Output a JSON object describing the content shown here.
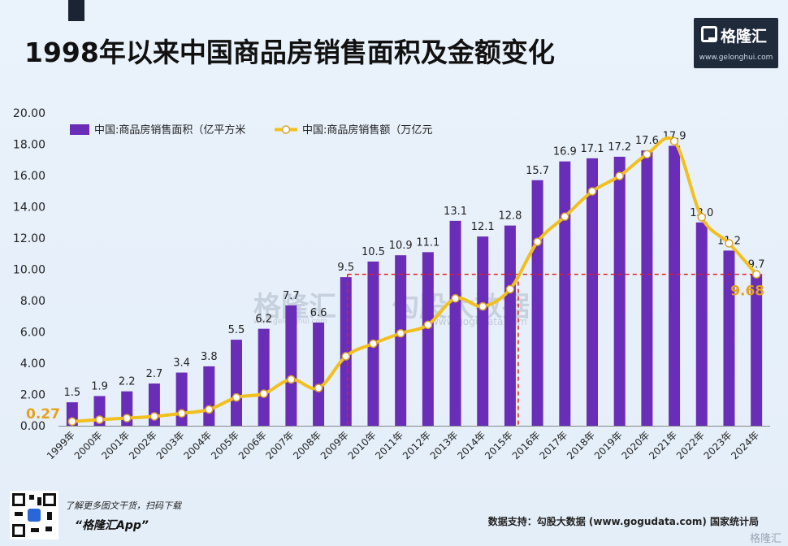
{
  "title": "1998年以来中国商品房销售面积及金额变化",
  "logo": {
    "name": "格隆汇",
    "url": "www.gelonghui.com"
  },
  "watermarks": {
    "w1": "格隆汇",
    "w1_url": "www.gelonghui.com",
    "w2": "勾股大数据",
    "w2_url": "www.gogudata.com"
  },
  "footer": {
    "line1": "了解更多图文干货，扫码下载",
    "line2": "“格隆汇App”",
    "source": "数据支持：勾股大数据  (www.gogudata.com) 国家统计局",
    "corner_logo": "格隆汇"
  },
  "chart_data": {
    "type": "bar",
    "categories": [
      "1999年",
      "2000年",
      "2001年",
      "2002年",
      "2003年",
      "2004年",
      "2005年",
      "2006年",
      "2007年",
      "2008年",
      "2009年",
      "2010年",
      "2011年",
      "2012年",
      "2013年",
      "2014年",
      "2015年",
      "2016年",
      "2017年",
      "2018年",
      "2019年",
      "2020年",
      "2021年",
      "2022年",
      "2023年",
      "2024年"
    ],
    "series": [
      {
        "name": "中国:商品房销售面积（亿平方米",
        "type": "bar",
        "color": "#6a2db8",
        "values": [
          1.5,
          1.9,
          2.2,
          2.7,
          3.4,
          3.8,
          5.5,
          6.2,
          7.7,
          6.6,
          9.5,
          10.5,
          10.9,
          11.1,
          13.1,
          12.1,
          12.8,
          15.7,
          16.9,
          17.1,
          17.2,
          17.6,
          17.9,
          13.0,
          11.2,
          9.7
        ],
        "labels": [
          "1.5",
          "1.9",
          "2.2",
          "2.7",
          "3.4",
          "3.8",
          "5.5",
          "6.2",
          "7.7",
          "6.6",
          "9.5",
          "10.5",
          "10.9",
          "11.1",
          "13.1",
          "12.1",
          "12.8",
          "15.7",
          "16.9",
          "17.1",
          "17.2",
          "17.6",
          "17.9",
          "13.0",
          "11.2",
          "9.7"
        ]
      },
      {
        "name": "中国:商品房销售额（万亿元",
        "type": "line",
        "color": "#f2c01e",
        "values": [
          0.27,
          0.39,
          0.49,
          0.6,
          0.79,
          1.04,
          1.81,
          2.05,
          2.96,
          2.41,
          4.44,
          5.25,
          5.91,
          6.45,
          8.14,
          7.63,
          8.73,
          11.76,
          13.37,
          14.99,
          15.97,
          17.36,
          18.19,
          13.33,
          11.66,
          9.68
        ]
      }
    ],
    "callouts": {
      "first_value": "0.27",
      "last_value": "9.68"
    },
    "y_ticks": [
      "0.00",
      "2.00",
      "4.00",
      "6.00",
      "8.00",
      "10.00",
      "12.00",
      "14.00",
      "16.00",
      "18.00",
      "20.00"
    ],
    "ylim": [
      0,
      20
    ],
    "reference": {
      "y": 9.68,
      "x_from": "2009年",
      "x_mid": "2015年",
      "x_to": "2024年",
      "color": "#e02020"
    },
    "legend": "top-left",
    "grid": false,
    "xlabel": "",
    "ylabel": ""
  }
}
